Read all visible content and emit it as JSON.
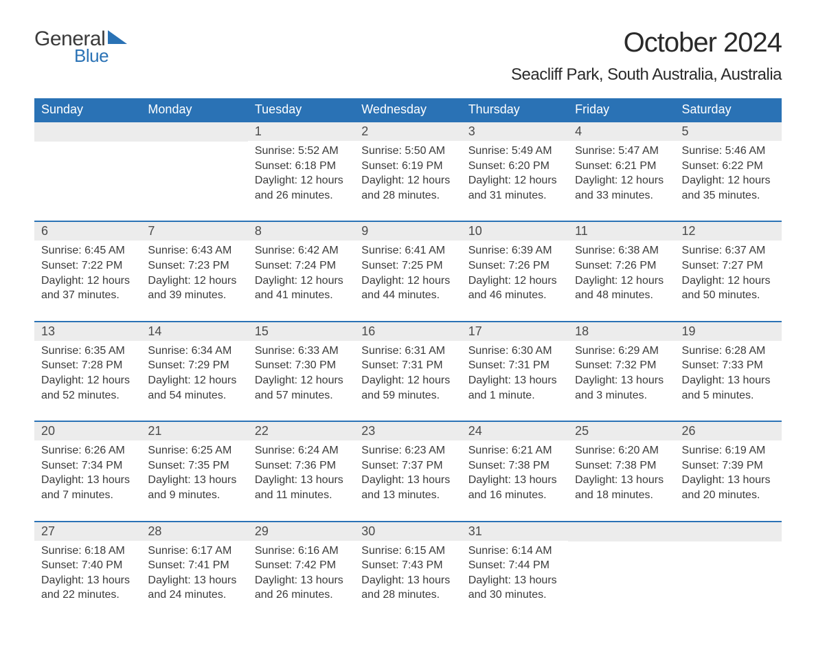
{
  "brand": {
    "name_top": "General",
    "name_bottom": "Blue",
    "brand_color": "#2a72b5",
    "text_color": "#3a3a3a"
  },
  "title": "October 2024",
  "location": "Seacliff Park, South Australia, Australia",
  "calendar": {
    "type": "table",
    "header_bg": "#2a72b5",
    "header_text_color": "#ffffff",
    "day_number_bg": "#ececec",
    "row_divider_color": "#2a72b5",
    "body_text_color": "#3a3a3a",
    "font_family": "Arial",
    "header_fontsize": 18,
    "daynum_fontsize": 18,
    "body_fontsize": 16,
    "day_names": [
      "Sunday",
      "Monday",
      "Tuesday",
      "Wednesday",
      "Thursday",
      "Friday",
      "Saturday"
    ],
    "weeks": [
      [
        null,
        null,
        {
          "n": "1",
          "sunrise": "Sunrise: 5:52 AM",
          "sunset": "Sunset: 6:18 PM",
          "daylight": "Daylight: 12 hours and 26 minutes."
        },
        {
          "n": "2",
          "sunrise": "Sunrise: 5:50 AM",
          "sunset": "Sunset: 6:19 PM",
          "daylight": "Daylight: 12 hours and 28 minutes."
        },
        {
          "n": "3",
          "sunrise": "Sunrise: 5:49 AM",
          "sunset": "Sunset: 6:20 PM",
          "daylight": "Daylight: 12 hours and 31 minutes."
        },
        {
          "n": "4",
          "sunrise": "Sunrise: 5:47 AM",
          "sunset": "Sunset: 6:21 PM",
          "daylight": "Daylight: 12 hours and 33 minutes."
        },
        {
          "n": "5",
          "sunrise": "Sunrise: 5:46 AM",
          "sunset": "Sunset: 6:22 PM",
          "daylight": "Daylight: 12 hours and 35 minutes."
        }
      ],
      [
        {
          "n": "6",
          "sunrise": "Sunrise: 6:45 AM",
          "sunset": "Sunset: 7:22 PM",
          "daylight": "Daylight: 12 hours and 37 minutes."
        },
        {
          "n": "7",
          "sunrise": "Sunrise: 6:43 AM",
          "sunset": "Sunset: 7:23 PM",
          "daylight": "Daylight: 12 hours and 39 minutes."
        },
        {
          "n": "8",
          "sunrise": "Sunrise: 6:42 AM",
          "sunset": "Sunset: 7:24 PM",
          "daylight": "Daylight: 12 hours and 41 minutes."
        },
        {
          "n": "9",
          "sunrise": "Sunrise: 6:41 AM",
          "sunset": "Sunset: 7:25 PM",
          "daylight": "Daylight: 12 hours and 44 minutes."
        },
        {
          "n": "10",
          "sunrise": "Sunrise: 6:39 AM",
          "sunset": "Sunset: 7:26 PM",
          "daylight": "Daylight: 12 hours and 46 minutes."
        },
        {
          "n": "11",
          "sunrise": "Sunrise: 6:38 AM",
          "sunset": "Sunset: 7:26 PM",
          "daylight": "Daylight: 12 hours and 48 minutes."
        },
        {
          "n": "12",
          "sunrise": "Sunrise: 6:37 AM",
          "sunset": "Sunset: 7:27 PM",
          "daylight": "Daylight: 12 hours and 50 minutes."
        }
      ],
      [
        {
          "n": "13",
          "sunrise": "Sunrise: 6:35 AM",
          "sunset": "Sunset: 7:28 PM",
          "daylight": "Daylight: 12 hours and 52 minutes."
        },
        {
          "n": "14",
          "sunrise": "Sunrise: 6:34 AM",
          "sunset": "Sunset: 7:29 PM",
          "daylight": "Daylight: 12 hours and 54 minutes."
        },
        {
          "n": "15",
          "sunrise": "Sunrise: 6:33 AM",
          "sunset": "Sunset: 7:30 PM",
          "daylight": "Daylight: 12 hours and 57 minutes."
        },
        {
          "n": "16",
          "sunrise": "Sunrise: 6:31 AM",
          "sunset": "Sunset: 7:31 PM",
          "daylight": "Daylight: 12 hours and 59 minutes."
        },
        {
          "n": "17",
          "sunrise": "Sunrise: 6:30 AM",
          "sunset": "Sunset: 7:31 PM",
          "daylight": "Daylight: 13 hours and 1 minute."
        },
        {
          "n": "18",
          "sunrise": "Sunrise: 6:29 AM",
          "sunset": "Sunset: 7:32 PM",
          "daylight": "Daylight: 13 hours and 3 minutes."
        },
        {
          "n": "19",
          "sunrise": "Sunrise: 6:28 AM",
          "sunset": "Sunset: 7:33 PM",
          "daylight": "Daylight: 13 hours and 5 minutes."
        }
      ],
      [
        {
          "n": "20",
          "sunrise": "Sunrise: 6:26 AM",
          "sunset": "Sunset: 7:34 PM",
          "daylight": "Daylight: 13 hours and 7 minutes."
        },
        {
          "n": "21",
          "sunrise": "Sunrise: 6:25 AM",
          "sunset": "Sunset: 7:35 PM",
          "daylight": "Daylight: 13 hours and 9 minutes."
        },
        {
          "n": "22",
          "sunrise": "Sunrise: 6:24 AM",
          "sunset": "Sunset: 7:36 PM",
          "daylight": "Daylight: 13 hours and 11 minutes."
        },
        {
          "n": "23",
          "sunrise": "Sunrise: 6:23 AM",
          "sunset": "Sunset: 7:37 PM",
          "daylight": "Daylight: 13 hours and 13 minutes."
        },
        {
          "n": "24",
          "sunrise": "Sunrise: 6:21 AM",
          "sunset": "Sunset: 7:38 PM",
          "daylight": "Daylight: 13 hours and 16 minutes."
        },
        {
          "n": "25",
          "sunrise": "Sunrise: 6:20 AM",
          "sunset": "Sunset: 7:38 PM",
          "daylight": "Daylight: 13 hours and 18 minutes."
        },
        {
          "n": "26",
          "sunrise": "Sunrise: 6:19 AM",
          "sunset": "Sunset: 7:39 PM",
          "daylight": "Daylight: 13 hours and 20 minutes."
        }
      ],
      [
        {
          "n": "27",
          "sunrise": "Sunrise: 6:18 AM",
          "sunset": "Sunset: 7:40 PM",
          "daylight": "Daylight: 13 hours and 22 minutes."
        },
        {
          "n": "28",
          "sunrise": "Sunrise: 6:17 AM",
          "sunset": "Sunset: 7:41 PM",
          "daylight": "Daylight: 13 hours and 24 minutes."
        },
        {
          "n": "29",
          "sunrise": "Sunrise: 6:16 AM",
          "sunset": "Sunset: 7:42 PM",
          "daylight": "Daylight: 13 hours and 26 minutes."
        },
        {
          "n": "30",
          "sunrise": "Sunrise: 6:15 AM",
          "sunset": "Sunset: 7:43 PM",
          "daylight": "Daylight: 13 hours and 28 minutes."
        },
        {
          "n": "31",
          "sunrise": "Sunrise: 6:14 AM",
          "sunset": "Sunset: 7:44 PM",
          "daylight": "Daylight: 13 hours and 30 minutes."
        },
        null,
        null
      ]
    ]
  }
}
